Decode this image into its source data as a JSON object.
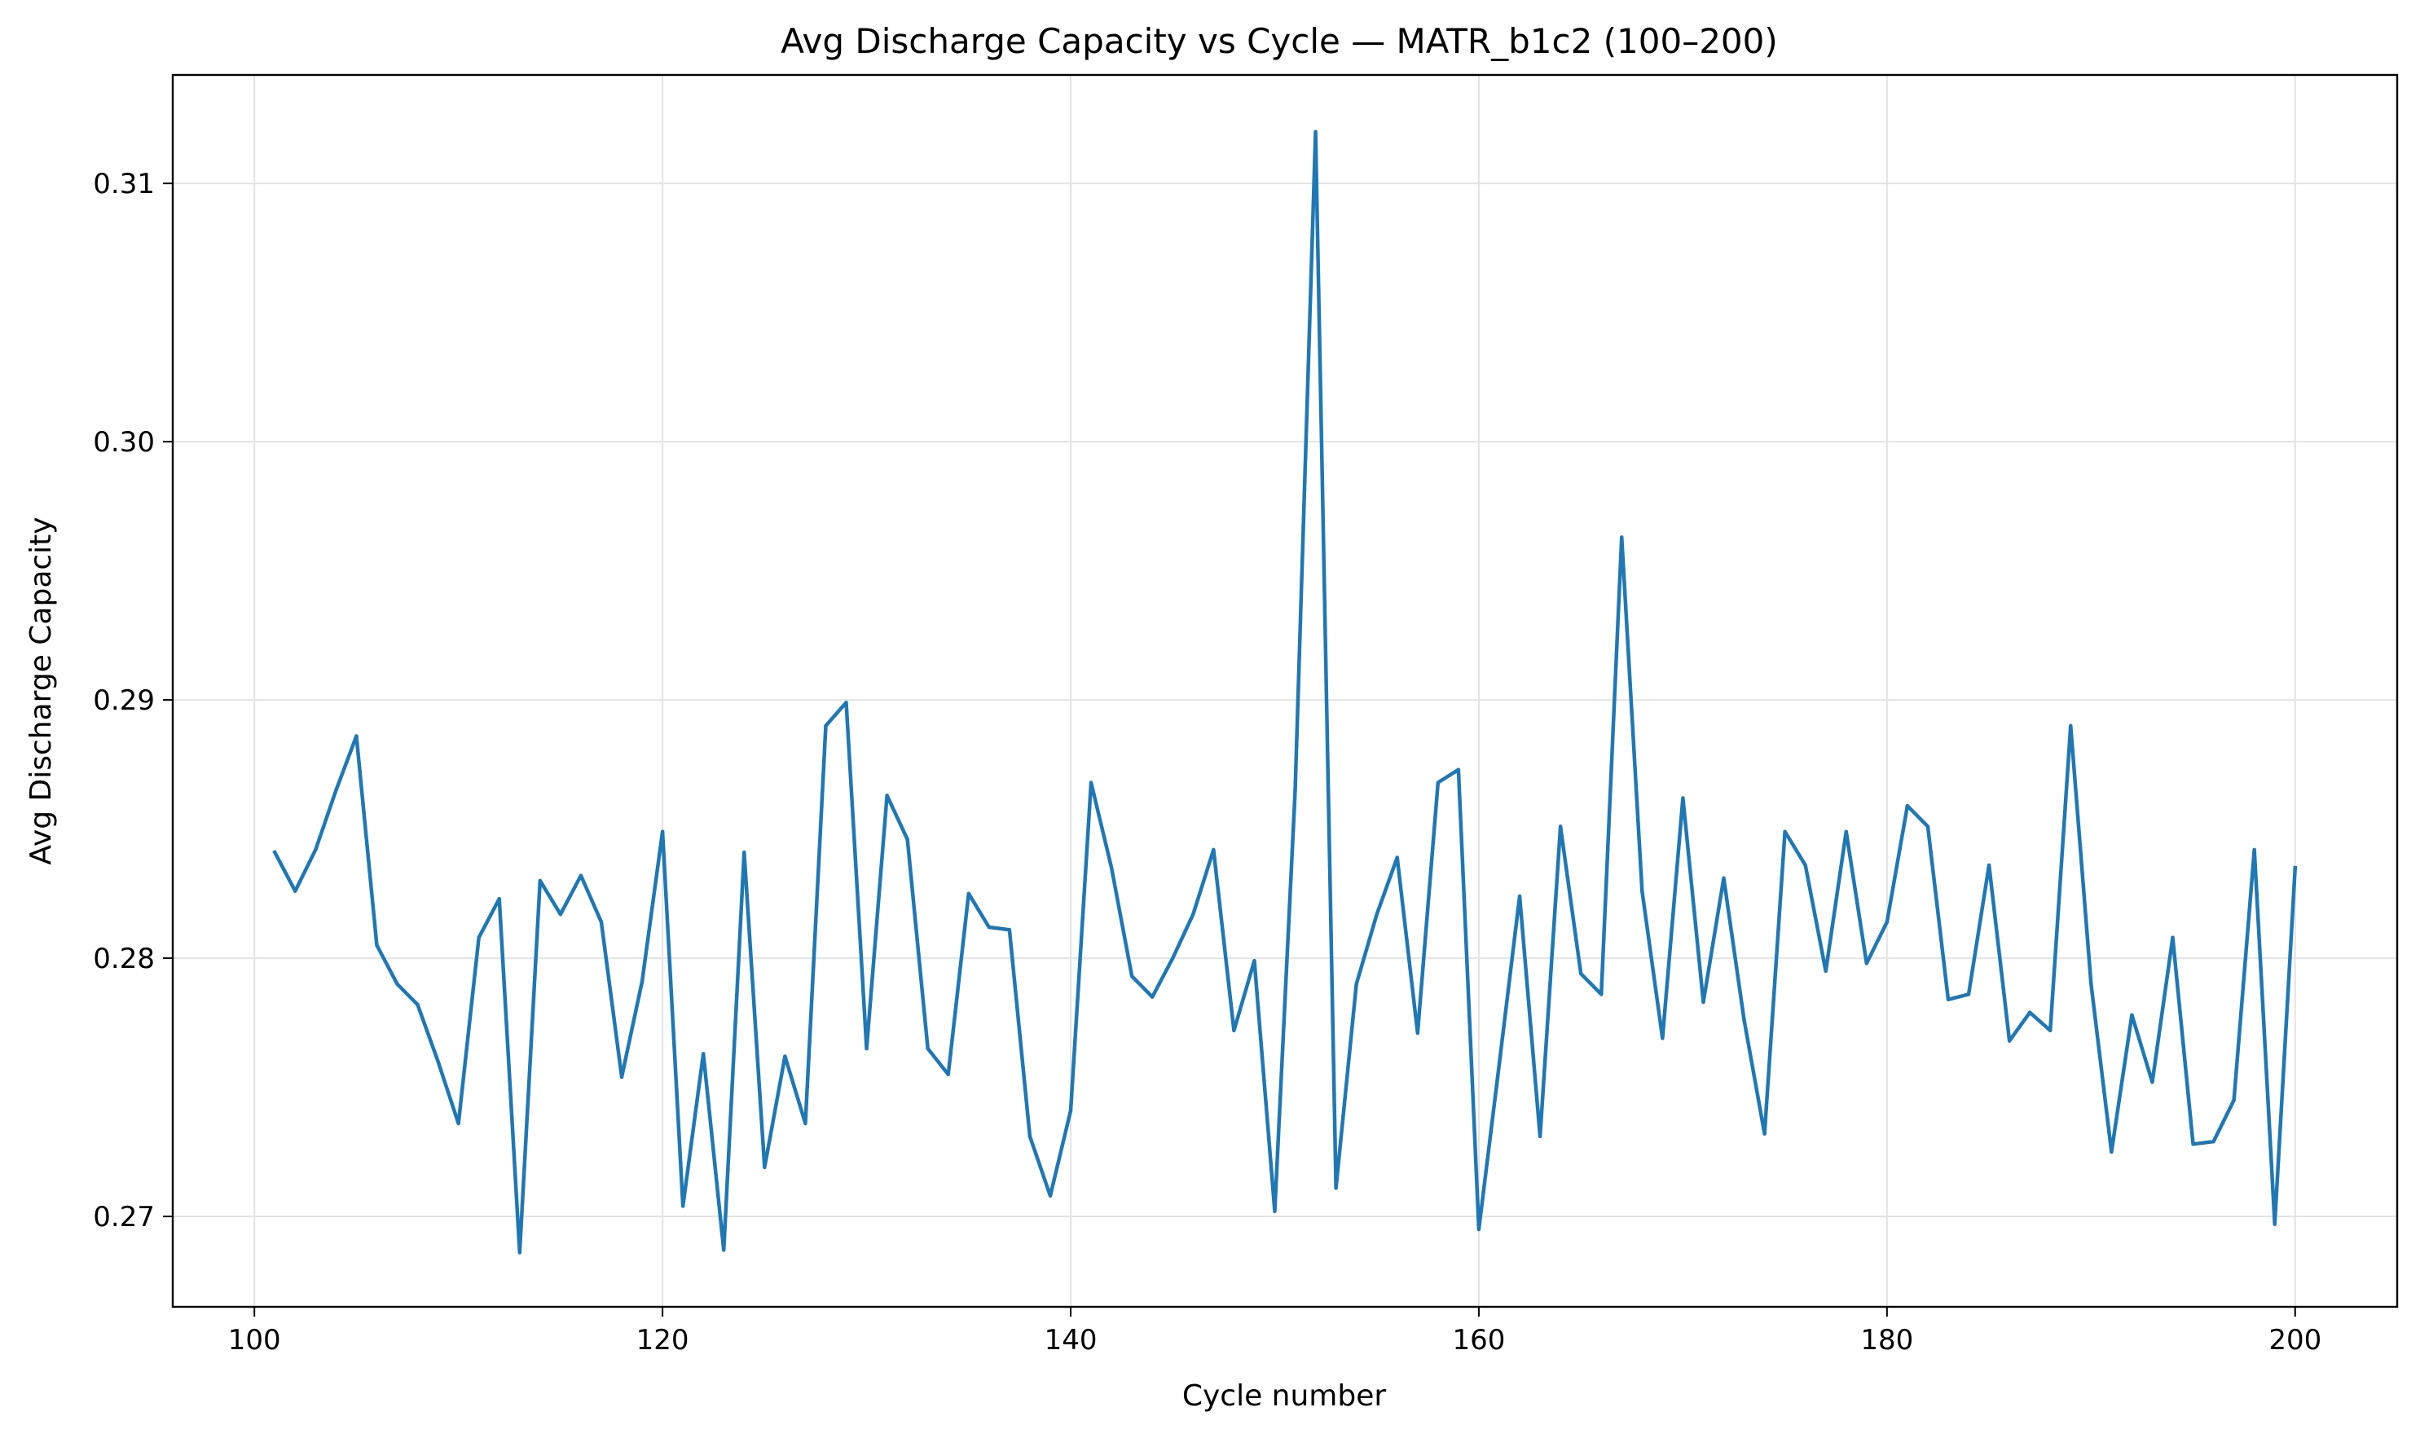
{
  "chart_data": {
    "type": "line",
    "title": "Avg Discharge Capacity vs Cycle — MATR_b1c2 (100–200)",
    "xlabel": "Cycle number",
    "ylabel": "Avg Discharge Capacity",
    "xlim": [
      96,
      205
    ],
    "ylim": [
      0.2665,
      0.3142
    ],
    "xticks": [
      100,
      120,
      140,
      160,
      180,
      200
    ],
    "xtick_labels": [
      "100",
      "120",
      "140",
      "160",
      "180",
      "200"
    ],
    "yticks": [
      0.27,
      0.28,
      0.29,
      0.3,
      0.31
    ],
    "ytick_labels": [
      "0.27",
      "0.28",
      "0.29",
      "0.30",
      "0.31"
    ],
    "grid": true,
    "line_color": "#1f77b4",
    "series": [
      {
        "x": [
          101,
          102,
          103,
          104,
          105,
          106,
          107,
          108,
          109,
          110,
          111,
          112,
          113,
          114,
          115,
          116,
          117,
          118,
          119,
          120,
          121,
          122,
          123,
          124,
          125,
          126,
          127,
          128,
          129,
          130,
          131,
          132,
          133,
          134,
          135,
          136,
          137,
          138,
          139,
          140,
          141,
          142,
          143,
          144,
          145,
          146,
          147,
          148,
          149,
          150,
          151,
          152,
          153,
          154,
          155,
          156,
          157,
          158,
          159,
          160,
          161,
          162,
          163,
          164,
          165,
          166,
          167,
          168,
          169,
          170,
          171,
          172,
          173,
          174,
          175,
          176,
          177,
          178,
          179,
          180,
          181,
          182,
          183,
          184,
          185,
          186,
          187,
          188,
          189,
          190,
          191,
          192,
          193,
          194,
          195,
          196,
          197,
          198,
          199,
          200
        ],
        "values": [
          0.2841,
          0.2826,
          0.2842,
          0.2865,
          0.2886,
          0.2805,
          0.279,
          0.2782,
          0.276,
          0.2736,
          0.2808,
          0.2823,
          0.2686,
          0.283,
          0.2817,
          0.2832,
          0.2814,
          0.2754,
          0.2791,
          0.2849,
          0.2704,
          0.2763,
          0.2687,
          0.2841,
          0.2719,
          0.2762,
          0.2736,
          0.289,
          0.2899,
          0.2765,
          0.2863,
          0.2846,
          0.2765,
          0.2755,
          0.2825,
          0.2812,
          0.2811,
          0.2731,
          0.2708,
          0.2741,
          0.2868,
          0.2835,
          0.2793,
          0.2785,
          0.28,
          0.2817,
          0.2842,
          0.2772,
          0.2799,
          0.2702,
          0.2865,
          0.312,
          0.2711,
          0.279,
          0.2817,
          0.2839,
          0.2771,
          0.2868,
          0.2873,
          0.2695,
          0.2759,
          0.2824,
          0.2731,
          0.2851,
          0.2794,
          0.2786,
          0.2963,
          0.2826,
          0.2769,
          0.2862,
          0.2783,
          0.2831,
          0.2776,
          0.2732,
          0.2849,
          0.2836,
          0.2795,
          0.2849,
          0.2798,
          0.2814,
          0.2859,
          0.2851,
          0.2784,
          0.2786,
          0.2836,
          0.2768,
          0.2779,
          0.2772,
          0.289,
          0.279,
          0.2725,
          0.2778,
          0.2752,
          0.2808,
          0.2728,
          0.2729,
          0.2745,
          0.2842,
          0.2697,
          0.2835
        ]
      }
    ]
  }
}
